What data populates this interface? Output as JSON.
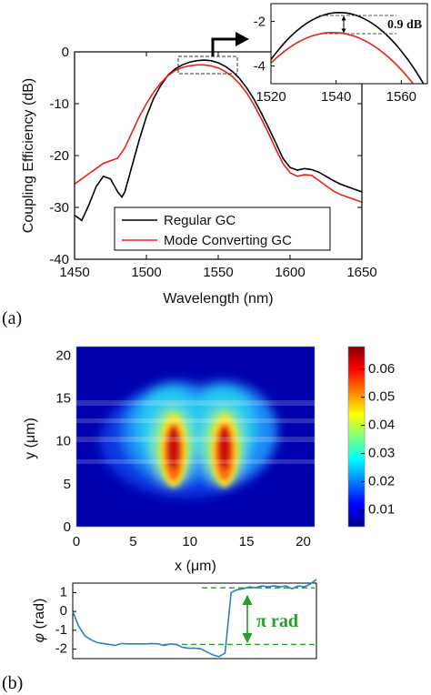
{
  "chart_data": [
    {
      "type": "line",
      "panel_label": "(a)",
      "xlabel": "Wavelength (nm)",
      "ylabel": "Coupling Efficiency (dB)",
      "xlim": [
        1450,
        1650
      ],
      "ylim": [
        -40,
        0
      ],
      "xticks": [
        "1450",
        "1500",
        "1550",
        "1600",
        "1650"
      ],
      "yticks": [
        "0",
        "-10",
        "-20",
        "-30",
        "-40"
      ],
      "grid": false,
      "legend_position": "bottom-left",
      "series": [
        {
          "name": "Regular GC",
          "color": "#000000",
          "x": [
            1450,
            1455,
            1460,
            1465,
            1470,
            1475,
            1480,
            1483,
            1485,
            1490,
            1495,
            1500,
            1505,
            1510,
            1515,
            1520,
            1525,
            1530,
            1535,
            1540,
            1545,
            1550,
            1555,
            1560,
            1565,
            1570,
            1575,
            1580,
            1585,
            1590,
            1595,
            1600,
            1605,
            1610,
            1615,
            1620,
            1625,
            1630,
            1635,
            1640,
            1645,
            1650
          ],
          "y": [
            -31.5,
            -32.5,
            -29.5,
            -26,
            -24,
            -24.5,
            -27,
            -28,
            -27,
            -22,
            -17,
            -12.5,
            -9,
            -6.5,
            -4.5,
            -3.3,
            -2.5,
            -2.0,
            -1.7,
            -1.6,
            -1.7,
            -2.1,
            -2.8,
            -3.8,
            -5.2,
            -7.0,
            -9.2,
            -11.8,
            -14.6,
            -17.5,
            -20.5,
            -22.3,
            -22.8,
            -22.5,
            -22.7,
            -23.2,
            -24.0,
            -24.8,
            -25.5,
            -26.0,
            -26.5,
            -27.0
          ]
        },
        {
          "name": "Mode Converting GC",
          "color": "#e8211d",
          "x": [
            1450,
            1455,
            1460,
            1465,
            1470,
            1475,
            1480,
            1485,
            1490,
            1495,
            1500,
            1505,
            1510,
            1515,
            1520,
            1525,
            1530,
            1535,
            1540,
            1545,
            1550,
            1555,
            1560,
            1565,
            1570,
            1575,
            1580,
            1585,
            1590,
            1595,
            1600,
            1605,
            1610,
            1615,
            1620,
            1625,
            1630,
            1635,
            1640,
            1645,
            1650
          ],
          "y": [
            -25.5,
            -24.5,
            -23.5,
            -22.5,
            -21.5,
            -21.0,
            -20.5,
            -18.5,
            -15.5,
            -12.5,
            -10,
            -7.8,
            -6.0,
            -4.6,
            -3.6,
            -3.0,
            -2.7,
            -2.5,
            -2.5,
            -2.7,
            -3.1,
            -3.8,
            -4.8,
            -6.2,
            -8.0,
            -10.3,
            -12.9,
            -15.7,
            -18.7,
            -21.5,
            -23.3,
            -24.0,
            -23.7,
            -23.8,
            -24.8,
            -25.8,
            -26.8,
            -27.5,
            -28.0,
            -28.5,
            -29.0
          ]
        }
      ],
      "inset": {
        "xlim": [
          1520,
          1568
        ],
        "ylim": [
          -4.8,
          -1.2
        ],
        "xticks": [
          "1520",
          "1540",
          "1560"
        ],
        "yticks": [
          "-2",
          "-4"
        ],
        "annotation": "0.9 dB"
      }
    },
    {
      "type": "heatmap",
      "panel_label": "(b)",
      "xlabel": "x (μm)",
      "ylabel": "y (μm)",
      "xlim": [
        0,
        21
      ],
      "ylim": [
        0,
        21
      ],
      "xticks": [
        "0",
        "5",
        "10",
        "15",
        "20"
      ],
      "yticks": [
        "0",
        "5",
        "10",
        "15",
        "20"
      ],
      "colormap": "jet",
      "colorbar_range": [
        0.004,
        0.068
      ],
      "colorbar_ticks": [
        "0.01",
        "0.02",
        "0.03",
        "0.04",
        "0.05",
        "0.06"
      ],
      "lobes": [
        {
          "x_center": 8.2,
          "y_center": 9.0,
          "peak": 0.068
        },
        {
          "x_center": 12.6,
          "y_center": 9.0,
          "peak": 0.068
        }
      ]
    },
    {
      "type": "line",
      "ylabel_symbol": "φ",
      "ylabel_unit": " (rad)",
      "ylim": [
        -2.5,
        1.5
      ],
      "yticks": [
        "1",
        "0",
        "-1",
        "-2"
      ],
      "annotation": "π rad",
      "reference_levels": [
        1.25,
        -1.75
      ],
      "series": [
        {
          "color": "#2e7fc1",
          "x": [
            0,
            0.5,
            1,
            1.5,
            2,
            2.5,
            3,
            3.5,
            4,
            4.5,
            5,
            5.5,
            6,
            6.5,
            7,
            7.5,
            8,
            8.5,
            9,
            9.5,
            10,
            10.5,
            11,
            11.5,
            12,
            12.5,
            13,
            13.5,
            14,
            14.5,
            15,
            15.5,
            16,
            16.5,
            17,
            17.5,
            18,
            18.5,
            19,
            19.5,
            20
          ],
          "y": [
            0,
            -0.8,
            -1.3,
            -1.5,
            -1.65,
            -1.7,
            -1.75,
            -1.8,
            -1.7,
            -1.72,
            -1.72,
            -1.72,
            -1.72,
            -1.7,
            -1.72,
            -1.8,
            -1.72,
            -1.75,
            -1.9,
            -1.95,
            -1.95,
            -1.98,
            -2.15,
            -2.3,
            -2.4,
            -2.2,
            1.0,
            1.15,
            1.2,
            1.3,
            1.25,
            1.35,
            1.3,
            1.35,
            1.3,
            1.35,
            1.2,
            1.35,
            1.3,
            1.45,
            1.7
          ]
        }
      ]
    }
  ]
}
